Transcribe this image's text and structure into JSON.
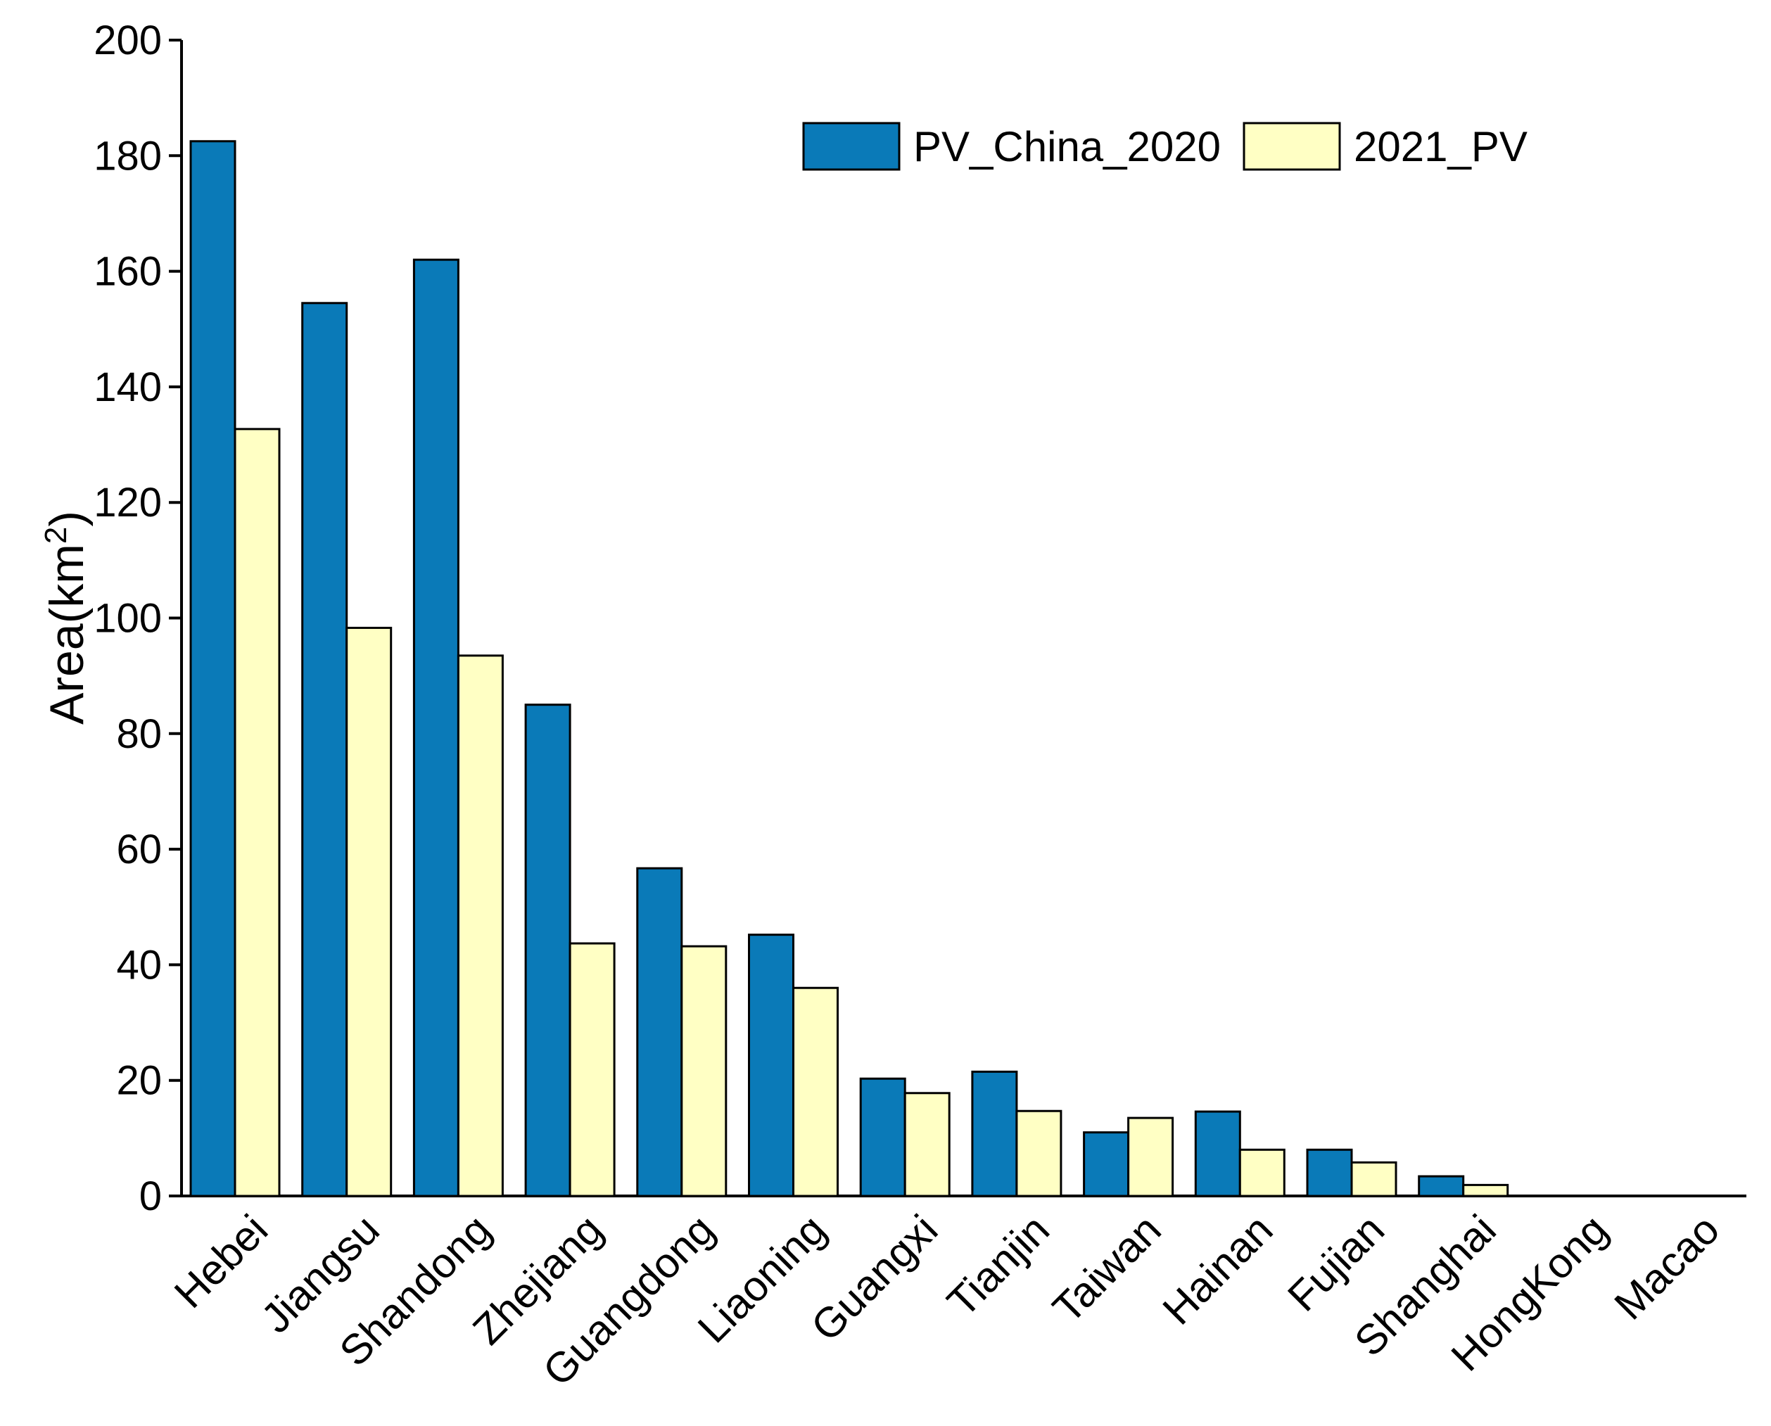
{
  "chart_data": {
    "type": "bar",
    "title": "",
    "xlabel": "",
    "ylabel": "Area(km",
    "ylabel_sup": "2",
    "ylabel_close": ")",
    "ylim": [
      0,
      200
    ],
    "yticks": [
      0,
      20,
      40,
      60,
      80,
      100,
      120,
      140,
      160,
      180,
      200
    ],
    "categories": [
      "Hebei",
      "Jiangsu",
      "Shandong",
      "Zhejiang",
      "Guangdong",
      "Liaoning",
      "Guangxi",
      "Tianjin",
      "Taiwan",
      "Hainan",
      "Fujian",
      "Shanghai",
      "HongKong",
      "Macao"
    ],
    "series": [
      {
        "name": "PV_China_2020",
        "color": "#0a7ab8",
        "values": [
          182.5,
          154.5,
          162.0,
          85.0,
          56.7,
          45.2,
          20.3,
          21.5,
          11.0,
          14.6,
          8.0,
          3.4,
          0,
          0
        ]
      },
      {
        "name": "2021_PV",
        "color": "#ffffc4",
        "values": [
          132.7,
          98.3,
          93.5,
          43.7,
          43.2,
          36.0,
          17.8,
          14.7,
          13.5,
          8.0,
          5.8,
          1.9,
          0,
          0
        ]
      }
    ],
    "legend": "top-right",
    "grid": false
  }
}
